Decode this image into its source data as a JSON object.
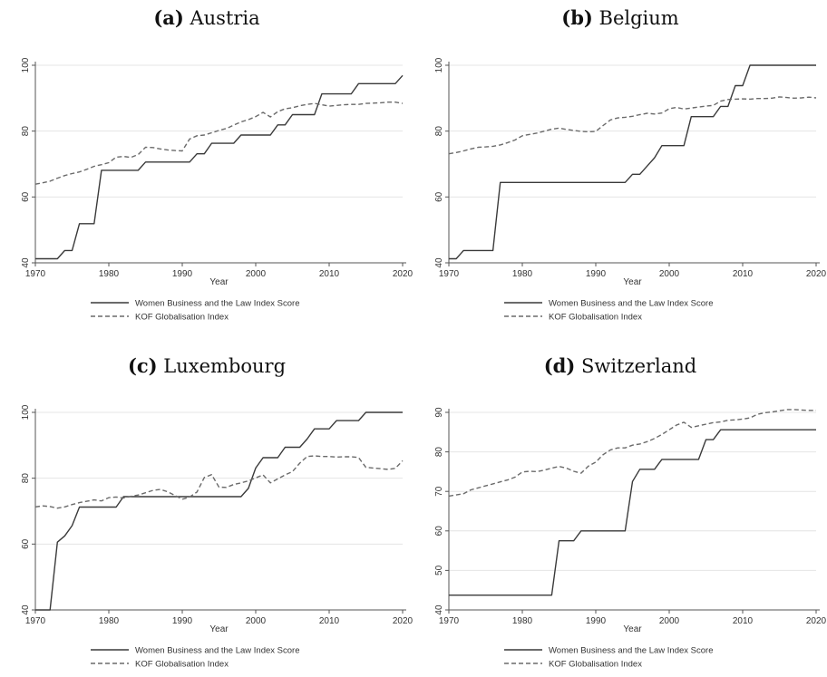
{
  "chart_data": [
    {
      "type": "line",
      "panel_label": "(a)",
      "title": "Austria",
      "xlabel": "Year",
      "ylabel": "",
      "xlim": [
        1970,
        2020
      ],
      "ylim": [
        40,
        100
      ],
      "xticks": [
        1970,
        1980,
        1990,
        2000,
        2010,
        2020
      ],
      "yticks": [
        40,
        60,
        80,
        100
      ],
      "grid": true,
      "legend": "bottom",
      "series": [
        {
          "name": "Women Business and the Law Index Score",
          "style": "solid",
          "x": [
            1970,
            1973,
            1974,
            1975,
            1976,
            1977,
            1978,
            1979,
            1984,
            1985,
            1991,
            1992,
            1993,
            1994,
            1995,
            1996,
            1997,
            1998,
            1999,
            2000,
            2001,
            2002,
            2003,
            2004,
            2005,
            2006,
            2007,
            2008,
            2009,
            2010,
            2011,
            2012,
            2013,
            2014,
            2015,
            2016,
            2017,
            2018,
            2019,
            2020
          ],
          "y": [
            41.25,
            41.25,
            43.75,
            43.75,
            51.9,
            51.9,
            51.9,
            68.1,
            68.1,
            70.6,
            70.6,
            73.1,
            73.1,
            76.3,
            76.3,
            76.3,
            76.3,
            78.8,
            78.8,
            78.8,
            78.8,
            78.8,
            81.9,
            81.9,
            85,
            85,
            85,
            85,
            91.3,
            91.3,
            91.3,
            91.3,
            91.3,
            94.4,
            94.4,
            94.4,
            94.4,
            94.4,
            94.4,
            96.9
          ]
        },
        {
          "name": "KOF Globalisation Index",
          "style": "dashed",
          "x": [
            1970,
            1971,
            1972,
            1973,
            1974,
            1975,
            1976,
            1977,
            1978,
            1979,
            1980,
            1981,
            1982,
            1983,
            1984,
            1985,
            1986,
            1987,
            1988,
            1989,
            1990,
            1991,
            1992,
            1993,
            1994,
            1995,
            1996,
            1997,
            1998,
            1999,
            2000,
            2001,
            2002,
            2003,
            2004,
            2005,
            2006,
            2007,
            2008,
            2009,
            2010,
            2011,
            2012,
            2013,
            2014,
            2015,
            2016,
            2017,
            2018,
            2019,
            2020
          ],
          "y": [
            63.9,
            64.3,
            64.8,
            65.7,
            66.5,
            67.1,
            67.6,
            68.4,
            69.3,
            69.8,
            70.4,
            72.1,
            72.3,
            72.0,
            72.9,
            75.1,
            75.0,
            74.6,
            74.3,
            74.1,
            74.0,
            77.6,
            78.6,
            78.8,
            79.5,
            80.2,
            80.8,
            81.8,
            82.8,
            83.5,
            84.4,
            85.7,
            84.3,
            85.9,
            86.8,
            87.1,
            87.7,
            88.1,
            88.4,
            88.0,
            87.6,
            87.8,
            88.0,
            88.1,
            88.1,
            88.4,
            88.5,
            88.6,
            88.8,
            88.8,
            88.4
          ]
        }
      ]
    },
    {
      "type": "line",
      "panel_label": "(b)",
      "title": "Belgium",
      "xlabel": "Year",
      "ylabel": "",
      "xlim": [
        1970,
        2020
      ],
      "ylim": [
        40,
        100
      ],
      "xticks": [
        1970,
        1980,
        1990,
        2000,
        2010,
        2020
      ],
      "yticks": [
        40,
        60,
        80,
        100
      ],
      "grid": true,
      "legend": "bottom",
      "series": [
        {
          "name": "Women Business and the Law Index Score",
          "style": "solid",
          "x": [
            1970,
            1971,
            1972,
            1973,
            1974,
            1975,
            1976,
            1977,
            1994,
            1995,
            1996,
            1997,
            1998,
            1999,
            2000,
            2001,
            2002,
            2003,
            2004,
            2005,
            2006,
            2007,
            2008,
            2009,
            2010,
            2011,
            2020
          ],
          "y": [
            41.25,
            41.25,
            43.75,
            43.75,
            43.75,
            43.75,
            43.75,
            64.4,
            64.4,
            66.9,
            66.9,
            69.4,
            71.9,
            75.6,
            75.6,
            75.6,
            75.6,
            84.4,
            84.4,
            84.4,
            84.4,
            87.5,
            87.5,
            93.8,
            93.8,
            100,
            100
          ]
        },
        {
          "name": "KOF Globalisation Index",
          "style": "dashed",
          "x": [
            1970,
            1971,
            1972,
            1973,
            1974,
            1975,
            1976,
            1977,
            1978,
            1979,
            1980,
            1981,
            1982,
            1983,
            1984,
            1985,
            1986,
            1987,
            1988,
            1989,
            1990,
            1991,
            1992,
            1993,
            1994,
            1995,
            1996,
            1997,
            1998,
            1999,
            2000,
            2001,
            2002,
            2003,
            2004,
            2005,
            2006,
            2007,
            2008,
            2009,
            2010,
            2011,
            2012,
            2013,
            2014,
            2015,
            2016,
            2017,
            2018,
            2019,
            2020
          ],
          "y": [
            73.1,
            73.5,
            74.0,
            74.6,
            75.1,
            75.2,
            75.4,
            75.8,
            76.5,
            77.3,
            78.6,
            79.0,
            79.4,
            80.0,
            80.6,
            80.9,
            80.5,
            80.2,
            79.9,
            79.8,
            79.9,
            81.7,
            83.4,
            84.0,
            84.2,
            84.5,
            85.0,
            85.4,
            85.2,
            85.5,
            86.8,
            87.2,
            86.7,
            87.0,
            87.3,
            87.6,
            87.8,
            89.1,
            89.6,
            89.7,
            89.8,
            89.7,
            89.9,
            89.9,
            90.0,
            90.4,
            90.2,
            90.0,
            90.1,
            90.3,
            90.1
          ]
        }
      ]
    },
    {
      "type": "line",
      "panel_label": "(c)",
      "title": "Luxembourg",
      "xlabel": "Year",
      "ylabel": "",
      "xlim": [
        1970,
        2020
      ],
      "ylim": [
        40,
        100
      ],
      "xticks": [
        1970,
        1980,
        1990,
        2000,
        2010,
        2020
      ],
      "yticks": [
        40,
        60,
        80,
        100
      ],
      "grid": true,
      "legend": "bottom",
      "series": [
        {
          "name": "Women Business and the Law Index Score",
          "style": "solid",
          "x": [
            1970,
            1972,
            1973,
            1974,
            1975,
            1976,
            1981,
            1982,
            1998,
            1999,
            2000,
            2001,
            2002,
            2003,
            2004,
            2005,
            2006,
            2007,
            2008,
            2009,
            2010,
            2011,
            2012,
            2013,
            2014,
            2015,
            2020
          ],
          "y": [
            40,
            40,
            60.6,
            62.5,
            65.6,
            71.25,
            71.25,
            74.4,
            74.4,
            76.9,
            83.1,
            86.25,
            86.25,
            86.25,
            89.4,
            89.4,
            89.4,
            91.9,
            95,
            95,
            95,
            97.5,
            97.5,
            97.5,
            97.5,
            100,
            100
          ]
        },
        {
          "name": "KOF Globalisation Index",
          "style": "dashed",
          "x": [
            1970,
            1971,
            1972,
            1973,
            1974,
            1975,
            1976,
            1977,
            1978,
            1979,
            1980,
            1981,
            1982,
            1983,
            1984,
            1985,
            1986,
            1987,
            1988,
            1989,
            1990,
            1991,
            1992,
            1993,
            1994,
            1995,
            1996,
            1997,
            1998,
            1999,
            2000,
            2001,
            2002,
            2003,
            2004,
            2005,
            2006,
            2007,
            2008,
            2009,
            2010,
            2011,
            2012,
            2013,
            2014,
            2015,
            2016,
            2017,
            2018,
            2019,
            2020
          ],
          "y": [
            71.3,
            71.6,
            71.4,
            70.9,
            71.3,
            72.0,
            72.6,
            73.0,
            73.4,
            73.1,
            74.1,
            74.3,
            74.0,
            74.5,
            74.9,
            75.6,
            76.3,
            76.6,
            75.9,
            74.8,
            73.6,
            74.3,
            75.8,
            80.2,
            81.1,
            77.3,
            77.2,
            78.1,
            78.6,
            79.2,
            80.1,
            81.0,
            78.6,
            79.8,
            81.0,
            82.0,
            84.6,
            86.6,
            86.8,
            86.6,
            86.6,
            86.4,
            86.5,
            86.5,
            86.3,
            83.3,
            83.1,
            82.9,
            82.7,
            83.0,
            85.3
          ]
        }
      ]
    },
    {
      "type": "line",
      "panel_label": "(d)",
      "title": "Switzerland",
      "xlabel": "Year",
      "ylabel": "",
      "xlim": [
        1970,
        2020
      ],
      "ylim": [
        40,
        90
      ],
      "xticks": [
        1970,
        1980,
        1990,
        2000,
        2010,
        2020
      ],
      "yticks": [
        40,
        50,
        60,
        70,
        80,
        90
      ],
      "grid": true,
      "legend": "bottom",
      "series": [
        {
          "name": "Women Business and the Law Index Score",
          "style": "solid",
          "x": [
            1970,
            1984,
            1985,
            1986,
            1987,
            1988,
            1989,
            1993,
            1994,
            1995,
            1996,
            1997,
            1998,
            1999,
            2000,
            2004,
            2005,
            2006,
            2007,
            2008,
            2020
          ],
          "y": [
            43.75,
            43.75,
            57.5,
            57.5,
            57.5,
            60,
            60,
            60,
            60,
            72.5,
            75.6,
            75.6,
            75.6,
            78.1,
            78.1,
            78.1,
            83.1,
            83.1,
            85.6,
            85.6,
            85.6
          ]
        },
        {
          "name": "KOF Globalisation Index",
          "style": "dashed",
          "x": [
            1970,
            1971,
            1972,
            1973,
            1974,
            1975,
            1976,
            1977,
            1978,
            1979,
            1980,
            1981,
            1982,
            1983,
            1984,
            1985,
            1986,
            1987,
            1988,
            1989,
            1990,
            1991,
            1992,
            1993,
            1994,
            1995,
            1996,
            1997,
            1998,
            1999,
            2000,
            2001,
            2002,
            2003,
            2004,
            2005,
            2006,
            2007,
            2008,
            2009,
            2010,
            2011,
            2012,
            2013,
            2014,
            2015,
            2016,
            2017,
            2018,
            2019,
            2020
          ],
          "y": [
            68.8,
            69.1,
            69.4,
            70.4,
            70.9,
            71.4,
            71.9,
            72.4,
            72.9,
            73.6,
            74.9,
            75.1,
            75.0,
            75.4,
            75.9,
            76.3,
            75.9,
            75.1,
            74.6,
            76.4,
            77.4,
            79.3,
            80.5,
            81.0,
            81.0,
            81.7,
            82.0,
            82.6,
            83.4,
            84.4,
            85.6,
            86.8,
            87.5,
            86.2,
            86.6,
            87.0,
            87.4,
            87.6,
            88.0,
            88.1,
            88.3,
            88.6,
            89.5,
            89.9,
            90.1,
            90.4,
            90.7,
            90.7,
            90.6,
            90.5,
            90.5
          ]
        }
      ]
    }
  ]
}
